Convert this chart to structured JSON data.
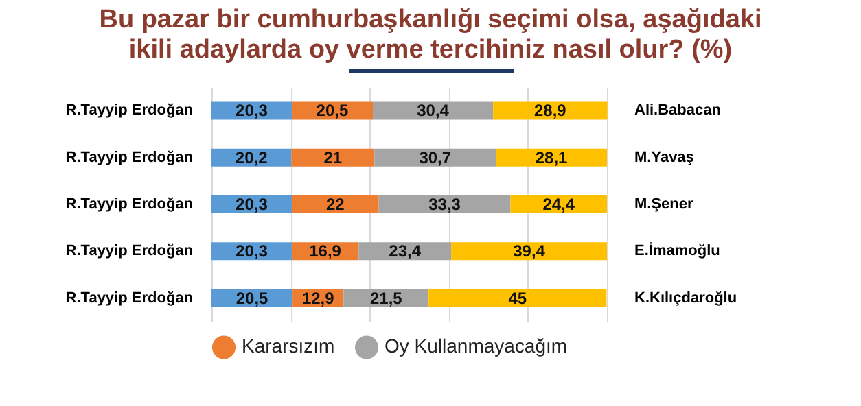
{
  "chart_data": {
    "type": "bar",
    "orientation": "horizontal",
    "stacked": true,
    "title": "Bu pazar bir cumhurbaşkanlığı seçimi olsa, aşağıdaki ikili adaylarda oy verme tercihiniz nasıl olur? (%)",
    "categories": [
      "R.Tayyip Erdoğan",
      "R.Tayyip Erdoğan",
      "R.Tayyip Erdoğan",
      "R.Tayyip Erdoğan",
      "R.Tayyip Erdoğan"
    ],
    "y2_categories": [
      "Ali.Babacan",
      "M.Yavaş",
      "M.Şener",
      "E.İmamoğlu",
      "K.Kılıçdaroğlu"
    ],
    "series": [
      {
        "color": "#5b9bd5",
        "values": [
          20.3,
          20.2,
          20.3,
          20.3,
          20.5
        ],
        "value_labels": [
          "20,3",
          "20,2",
          "20,3",
          "20,3",
          "20,5"
        ]
      },
      {
        "name": "Kararsızım",
        "color": "#ed7d31",
        "values": [
          20.5,
          21,
          22,
          16.9,
          12.9
        ],
        "value_labels": [
          "20,5",
          "21",
          "22",
          "16,9",
          "12,9"
        ]
      },
      {
        "name": "Oy Kullanmayacağım",
        "color": "#a5a5a5",
        "values": [
          30.4,
          30.7,
          33.3,
          23.4,
          21.5
        ],
        "value_labels": [
          "30,4",
          "30,7",
          "33,3",
          "23,4",
          "21,5"
        ]
      },
      {
        "color": "#ffc000",
        "values": [
          28.9,
          28.1,
          24.4,
          39.4,
          45
        ],
        "value_labels": [
          "28,9",
          "28,1",
          "24,4",
          "39,4",
          "45"
        ]
      }
    ],
    "xlim": [
      0,
      100
    ],
    "xticks": [
      {
        "value": 0,
        "label": null
      },
      {
        "value": 20,
        "label": null
      },
      {
        "value": 40,
        "label": null
      },
      {
        "value": 60,
        "label": null
      },
      {
        "value": 80,
        "label": null
      },
      {
        "value": 100,
        "label": null
      }
    ],
    "grid": "x",
    "tick_labels": "y",
    "legend": "bottom"
  }
}
